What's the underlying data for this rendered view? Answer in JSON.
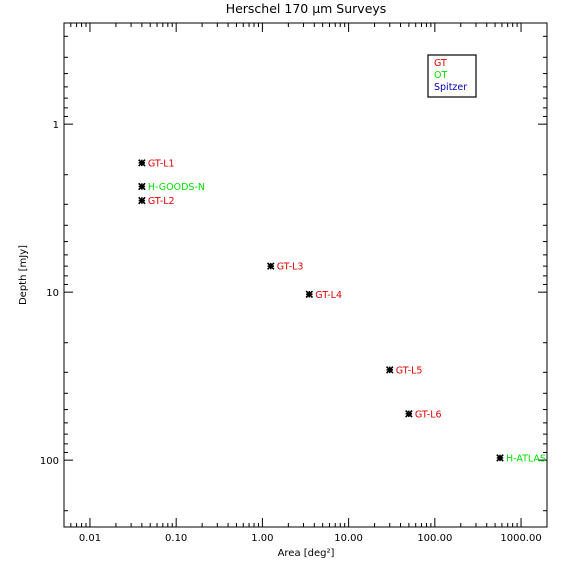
{
  "chart_data": {
    "type": "scatter",
    "title": "Herschel 170 μm Surveys",
    "xlabel": "Area [deg²]",
    "ylabel": "Depth [mJy]",
    "x_scale": "log",
    "y_scale": "log",
    "y_inverted": true,
    "xlim": [
      0.005,
      2000
    ],
    "ylim": [
      0.25,
      250
    ],
    "x_ticks": [
      "0.01",
      "0.10",
      "1.00",
      "10.00",
      "100.00",
      "1000.00"
    ],
    "y_ticks": [
      "1",
      "10",
      "100"
    ],
    "grid": false,
    "legend_position": "top-right",
    "legend": [
      {
        "name": "GT",
        "color": "#e00000"
      },
      {
        "name": "OT",
        "color": "#00e000"
      },
      {
        "name": "Spitzer",
        "color": "#0000c0"
      }
    ],
    "points": [
      {
        "label": "GT-L1",
        "x": 0.04,
        "y": 1.7,
        "color": "#e00000"
      },
      {
        "label": "H-GOODS-N",
        "x": 0.04,
        "y": 2.35,
        "color": "#00e000"
      },
      {
        "label": "GT-L2",
        "x": 0.04,
        "y": 2.85,
        "color": "#e00000"
      },
      {
        "label": "GT-L3",
        "x": 1.25,
        "y": 7.0,
        "color": "#e00000"
      },
      {
        "label": "GT-L4",
        "x": 3.5,
        "y": 10.3,
        "color": "#e00000"
      },
      {
        "label": "GT-L5",
        "x": 30,
        "y": 29,
        "color": "#e00000"
      },
      {
        "label": "GT-L6",
        "x": 50,
        "y": 53,
        "color": "#e00000"
      },
      {
        "label": "H-ATLAS",
        "x": 570,
        "y": 97,
        "color": "#00e000"
      }
    ]
  }
}
